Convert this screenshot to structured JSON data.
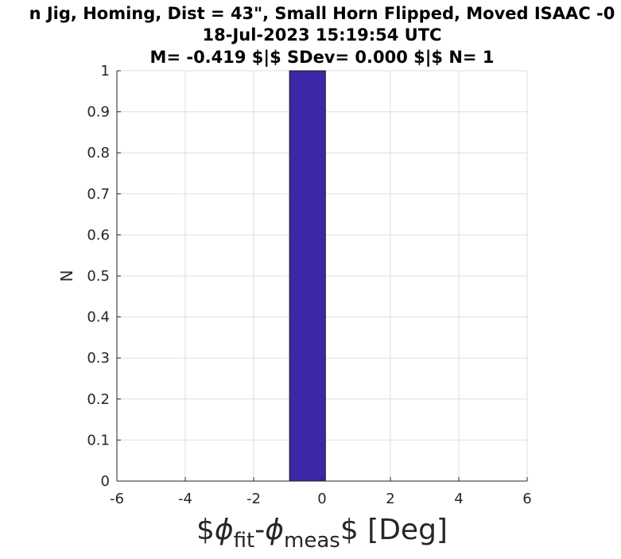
{
  "chart_data": {
    "type": "bar",
    "title_lines": [
      "n Jig, Homing, Dist = 43\", Small Horn Flipped, Moved ISAAC -0",
      "18-Jul-2023 15:19:54 UTC",
      "M= -0.419 $|$ SDev= 0.000 $|$ N= 1"
    ],
    "xlabel": {
      "prefix": "$",
      "phi1": "ϕ",
      "sub1": "fit",
      "minus": "-",
      "phi2": "ϕ",
      "sub2": "meas",
      "suffix": "$ [Deg]"
    },
    "ylabel": "N",
    "xlim": [
      -6,
      6
    ],
    "ylim": [
      0,
      1
    ],
    "xticks": [
      -6,
      -4,
      -2,
      0,
      2,
      4,
      6
    ],
    "xtick_labels": [
      "-6",
      "-4",
      "-2",
      "0",
      "2",
      "4",
      "6"
    ],
    "yticks": [
      0,
      0.1,
      0.2,
      0.3,
      0.4,
      0.5,
      0.6,
      0.7,
      0.8,
      0.9,
      1
    ],
    "ytick_labels": [
      "0",
      "0.1",
      "0.2",
      "0.3",
      "0.4",
      "0.5",
      "0.6",
      "0.7",
      "0.8",
      "0.9",
      "1"
    ],
    "grid": true,
    "bars": [
      {
        "x_start": -0.95,
        "x_end": 0.1,
        "value": 1
      }
    ],
    "bar_color": "#3c28a6"
  }
}
